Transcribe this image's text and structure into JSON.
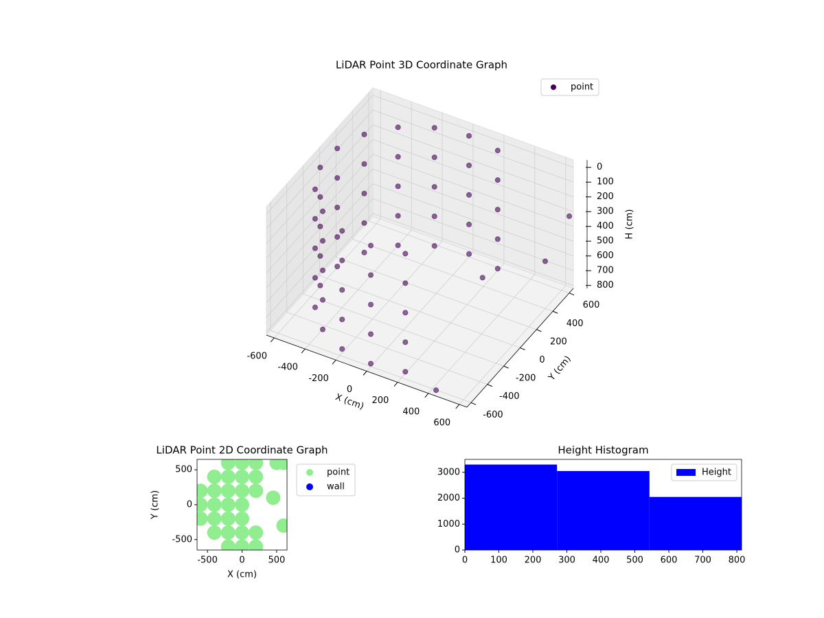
{
  "chart_data": [
    {
      "type": "scatter3d",
      "title": "LiDAR Point 3D Coordinate Graph",
      "xlabel": "X (cm)",
      "ylabel": "Y (cm)",
      "zlabel": "H (cm)",
      "xlim": [
        -650,
        650
      ],
      "ylim": [
        -650,
        650
      ],
      "zlim": [
        -50,
        820
      ],
      "z_inverted": true,
      "xticks": [
        -600,
        -400,
        -200,
        0,
        200,
        400,
        600
      ],
      "yticks": [
        -600,
        -400,
        -200,
        0,
        200,
        400,
        600
      ],
      "zticks": [
        0,
        100,
        200,
        300,
        400,
        500,
        600,
        700,
        800
      ],
      "grid": true,
      "legend": "upper right",
      "series": [
        {
          "name": "point",
          "color": "#440154",
          "x": [
            205,
            205,
            205,
            205,
            205,
            0,
            0,
            0,
            0,
            0,
            -205,
            -205,
            -205,
            -205,
            -205,
            -386,
            -386,
            -386,
            -386,
            -386,
            -520,
            -520,
            -520,
            -520,
            -520,
            -591,
            -591,
            -591,
            -591,
            -591,
            -591,
            -591,
            -591,
            -591,
            -591,
            -520,
            -520,
            -520,
            -520,
            -520,
            -386,
            -386,
            -386,
            -386,
            -386,
            -205,
            -205,
            -205,
            -205,
            -205,
            0,
            0,
            0,
            0,
            0,
            205,
            205,
            205,
            205,
            205,
            450,
            600,
            650,
            300
          ],
          "y": [
            564,
            564,
            564,
            564,
            564,
            600,
            600,
            600,
            600,
            600,
            564,
            564,
            564,
            564,
            564,
            460,
            460,
            460,
            460,
            460,
            300,
            300,
            300,
            300,
            300,
            104,
            104,
            104,
            104,
            104,
            -104,
            -104,
            -104,
            -104,
            -104,
            -300,
            -300,
            -300,
            -300,
            -300,
            -460,
            -460,
            -460,
            -460,
            -460,
            -564,
            -564,
            -564,
            -564,
            -564,
            -600,
            -600,
            -600,
            -600,
            -600,
            -564,
            -564,
            -564,
            -564,
            -564,
            -650,
            400,
            600,
            200
          ],
          "z": [
            0,
            200,
            400,
            600,
            800,
            0,
            200,
            400,
            600,
            800,
            0,
            200,
            400,
            600,
            800,
            0,
            200,
            400,
            600,
            800,
            0,
            200,
            400,
            600,
            800,
            0,
            200,
            400,
            600,
            800,
            0,
            200,
            400,
            600,
            800,
            0,
            200,
            400,
            600,
            800,
            0,
            200,
            400,
            600,
            800,
            0,
            200,
            400,
            600,
            800,
            0,
            200,
            400,
            600,
            800,
            0,
            200,
            400,
            600,
            800,
            780,
            500,
            300,
            600
          ]
        }
      ]
    },
    {
      "type": "scatter",
      "title": "LiDAR Point 2D Coordinate Graph",
      "xlabel": "X (cm)",
      "ylabel": "Y (cm)",
      "xlim": [
        -650,
        650
      ],
      "ylim": [
        -650,
        650
      ],
      "xticks": [
        -500,
        0,
        500
      ],
      "yticks": [
        -500,
        0,
        500
      ],
      "legend": "outside upper right",
      "series": [
        {
          "name": "point",
          "color": "#90ee90",
          "x": [
            -200,
            0,
            200,
            -400,
            -200,
            0,
            200,
            -600,
            -400,
            -200,
            0,
            200,
            -600,
            -400,
            -200,
            0,
            -600,
            -400,
            -200,
            0,
            -400,
            -200,
            0,
            200,
            -200,
            0,
            200,
            450,
            600,
            500,
            600
          ],
          "y": [
            600,
            600,
            600,
            400,
            400,
            400,
            400,
            200,
            200,
            200,
            200,
            200,
            0,
            0,
            0,
            0,
            -200,
            -200,
            -200,
            -200,
            -400,
            -400,
            -400,
            -400,
            -600,
            -600,
            -600,
            100,
            -300,
            600,
            600
          ]
        },
        {
          "name": "wall",
          "color": "#0000ff",
          "x": [],
          "y": []
        }
      ]
    },
    {
      "type": "histogram",
      "title": "Height Histogram",
      "bins": [
        0,
        271,
        543,
        814
      ],
      "xlim": [
        0,
        814
      ],
      "ylim": [
        0,
        3500
      ],
      "xticks": [
        0,
        100,
        200,
        300,
        400,
        500,
        600,
        700,
        800
      ],
      "yticks": [
        0,
        1000,
        2000,
        3000
      ],
      "legend": "upper right",
      "series": [
        {
          "name": "Height",
          "color": "#0000ff",
          "values": [
            3300,
            3050,
            2050
          ]
        }
      ]
    }
  ]
}
